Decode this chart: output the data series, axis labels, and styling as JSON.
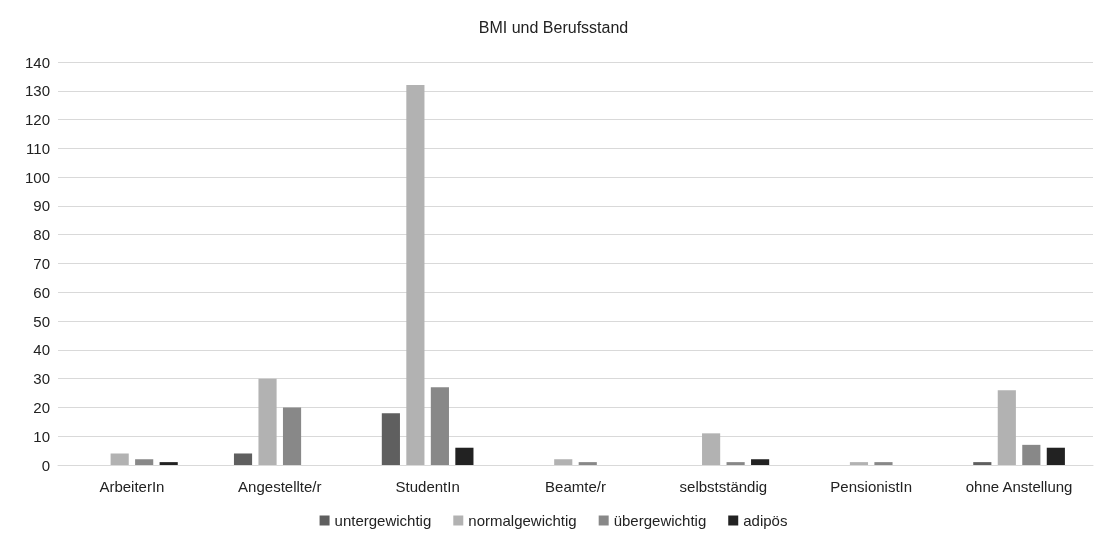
{
  "chart_data": {
    "type": "bar",
    "title": "BMI und Berufsstand",
    "categories": [
      "ArbeiterIn",
      "Angestellte/r",
      "StudentIn",
      "Beamte/r",
      "selbstständig",
      "PensionistIn",
      "ohne Anstellung"
    ],
    "series": [
      {
        "name": "untergewichtig",
        "color": "#5f5f5f",
        "values": [
          0,
          4,
          18,
          0,
          0,
          0,
          1
        ]
      },
      {
        "name": "normalgewichtig",
        "color": "#b2b2b2",
        "values": [
          4,
          30,
          132,
          2,
          11,
          1,
          26
        ]
      },
      {
        "name": "übergewichtig",
        "color": "#888888",
        "values": [
          2,
          20,
          27,
          1,
          1,
          1,
          7
        ]
      },
      {
        "name": "adipös",
        "color": "#222222",
        "values": [
          1,
          0,
          6,
          0,
          2,
          0,
          6
        ]
      }
    ],
    "ylim": [
      0,
      140
    ],
    "yticks": [
      0,
      10,
      20,
      30,
      40,
      50,
      60,
      70,
      80,
      90,
      100,
      110,
      120,
      130,
      140
    ],
    "grid": "y",
    "legend": "bottom"
  }
}
